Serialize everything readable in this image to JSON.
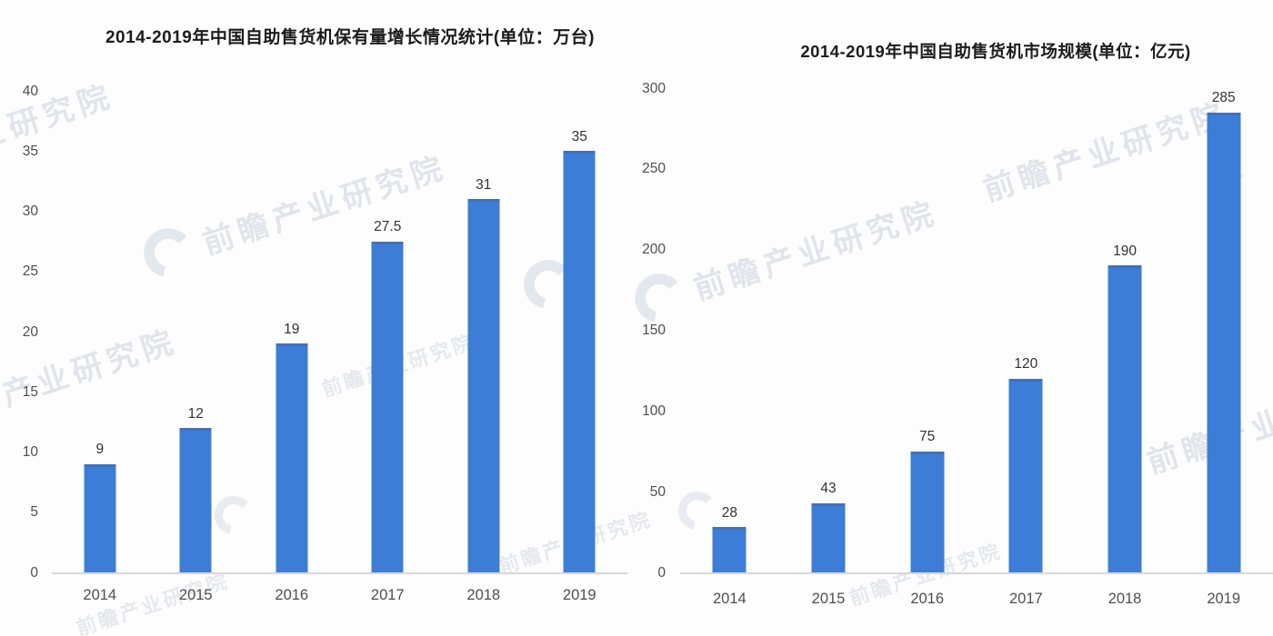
{
  "watermark": {
    "text": "前瞻产业研究院"
  },
  "colors": {
    "bar": "#3e7dd7",
    "axis": "#d8d8d8",
    "tick": "#4f4f4f",
    "val": "#333333",
    "title": "#1c1c1c",
    "wm_text": "#c9d2de",
    "wm_logo": "#cfd7e2"
  },
  "chart_data": [
    {
      "type": "bar",
      "title": "2014-2019年中国自助售货机保有量增长情况统计(单位：万台)",
      "categories": [
        "2014",
        "2015",
        "2016",
        "2017",
        "2018",
        "2019"
      ],
      "values": [
        9,
        12,
        19,
        27.5,
        31,
        35
      ],
      "xlabel": "",
      "ylabel": "",
      "unit": "万台",
      "ylim": [
        0,
        40
      ],
      "yticks": [
        0,
        5,
        10,
        15,
        20,
        25,
        30,
        35,
        40
      ],
      "grid": false,
      "legend": "none",
      "value_labels": true
    },
    {
      "type": "bar",
      "title": "2014-2019年中国自助售货机市场规模(单位：亿元)",
      "categories": [
        "2014",
        "2015",
        "2016",
        "2017",
        "2018",
        "2019"
      ],
      "values": [
        28,
        43,
        75,
        120,
        190,
        285
      ],
      "xlabel": "",
      "ylabel": "",
      "unit": "亿元",
      "ylim": [
        0,
        300
      ],
      "yticks": [
        0,
        50,
        100,
        150,
        200,
        250,
        300
      ],
      "grid": false,
      "legend": "none",
      "value_labels": true
    }
  ]
}
